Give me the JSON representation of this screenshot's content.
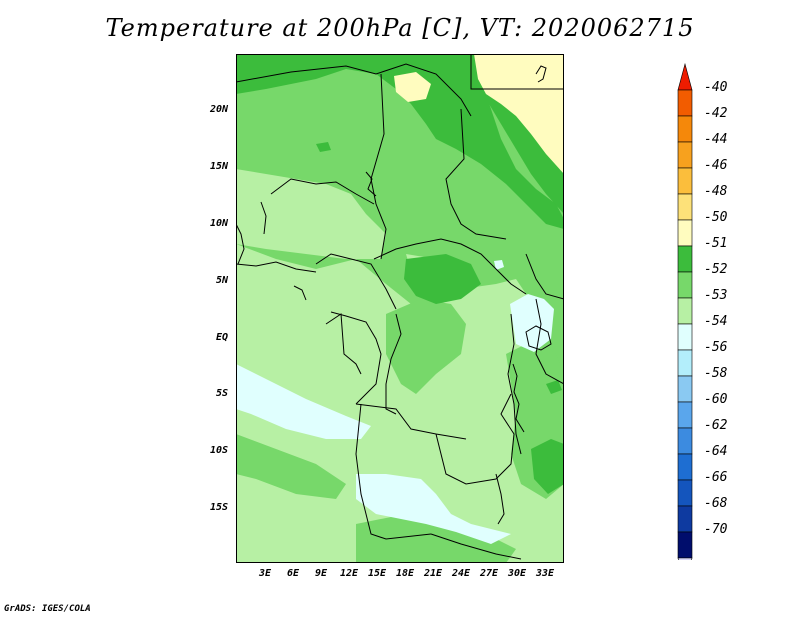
{
  "title": "Temperature at 200hPa [C], VT: 2020062715",
  "footer": "GrADS: IGES/COLA",
  "map": {
    "lat_ticks": [
      "20N",
      "15N",
      "10N",
      "5N",
      "EQ",
      "5S",
      "10S",
      "15S"
    ],
    "lon_ticks": [
      "3E",
      "6E",
      "9E",
      "12E",
      "15E",
      "18E",
      "21E",
      "24E",
      "27E",
      "30E",
      "33E"
    ]
  },
  "colorbar": {
    "labels": [
      "-40",
      "-42",
      "-44",
      "-46",
      "-48",
      "-50",
      "-51",
      "-52",
      "-53",
      "-54",
      "-56",
      "-58",
      "-60",
      "-62",
      "-64",
      "-66",
      "-68",
      "-70"
    ],
    "colors": [
      "#ee1c00",
      "#f25c00",
      "#f5880a",
      "#f7a11e",
      "#fbbe3c",
      "#fde179",
      "#fffcbf",
      "#3cbc3c",
      "#77d86a",
      "#b7f0a4",
      "#e0fffe",
      "#b3eefb",
      "#8ac9f2",
      "#5aa6ec",
      "#3c8be0",
      "#1e6ed2",
      "#1455bd",
      "#0e3aa0",
      "#000d6c",
      "#d7d7f5"
    ]
  },
  "field_colors": {
    "c51": "#fffcbf",
    "c52": "#3cbc3c",
    "c53": "#77d86a",
    "c54": "#b7f0a4",
    "c56": "#e0fffe"
  }
}
